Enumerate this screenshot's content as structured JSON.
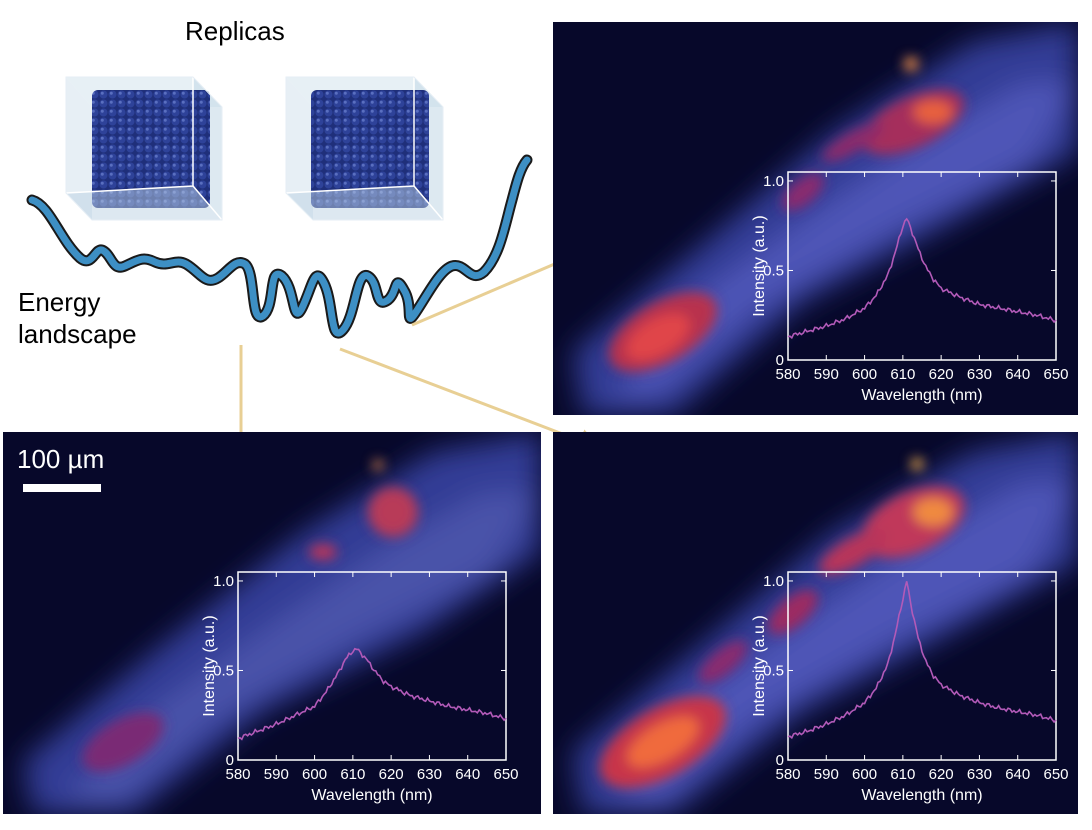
{
  "titles": {
    "replicas": "Replicas",
    "energy_line1": "Energy",
    "energy_line2": "landscape"
  },
  "scale_bar": {
    "label": "100 µm"
  },
  "colors": {
    "landscape_fill": "#3d8fc4",
    "arrow": "#e8cf94",
    "spectrum": "#b25ab8",
    "background_dark": "#07082a"
  },
  "chart_data": [
    {
      "type": "line",
      "panel": "top-right",
      "xlabel": "Wavelength (nm)",
      "ylabel": "Intensity (a.u.)",
      "xlim": [
        580,
        650
      ],
      "ylim": [
        0,
        1.05
      ],
      "xticks": [
        580,
        590,
        600,
        610,
        620,
        630,
        640,
        650
      ],
      "yticks": [
        0,
        0.5,
        1.0
      ],
      "ytick_labels": [
        "0",
        "0.5",
        "1.0"
      ],
      "x": [
        580,
        585,
        590,
        595,
        600,
        603,
        606,
        608,
        610,
        611,
        612,
        614,
        616,
        618,
        620,
        625,
        630,
        635,
        640,
        645,
        650
      ],
      "values": [
        0.13,
        0.16,
        0.19,
        0.23,
        0.29,
        0.36,
        0.47,
        0.6,
        0.75,
        0.79,
        0.74,
        0.62,
        0.52,
        0.45,
        0.4,
        0.35,
        0.31,
        0.29,
        0.27,
        0.25,
        0.22
      ]
    },
    {
      "type": "line",
      "panel": "bottom-left",
      "xlabel": "Wavelength (nm)",
      "ylabel": "Intensity (a.u.)",
      "xlim": [
        580,
        650
      ],
      "ylim": [
        0,
        1.05
      ],
      "xticks": [
        580,
        590,
        600,
        610,
        620,
        630,
        640,
        650
      ],
      "yticks": [
        0,
        0.5,
        1.0
      ],
      "ytick_labels": [
        "0",
        "0.5",
        "1.0"
      ],
      "x": [
        580,
        585,
        590,
        595,
        600,
        603,
        606,
        608,
        610,
        611,
        612,
        614,
        616,
        618,
        620,
        625,
        630,
        635,
        640,
        645,
        650
      ],
      "values": [
        0.12,
        0.16,
        0.2,
        0.25,
        0.3,
        0.38,
        0.48,
        0.56,
        0.61,
        0.62,
        0.6,
        0.55,
        0.49,
        0.44,
        0.41,
        0.36,
        0.33,
        0.3,
        0.28,
        0.26,
        0.23
      ]
    },
    {
      "type": "line",
      "panel": "bottom-right",
      "xlabel": "Wavelength (nm)",
      "ylabel": "Intensity (a.u.)",
      "xlim": [
        580,
        650
      ],
      "ylim": [
        0,
        1.05
      ],
      "xticks": [
        580,
        590,
        600,
        610,
        620,
        630,
        640,
        650
      ],
      "yticks": [
        0,
        0.5,
        1.0
      ],
      "ytick_labels": [
        "0",
        "0.5",
        "1.0"
      ],
      "x": [
        580,
        585,
        590,
        595,
        600,
        603,
        606,
        608,
        610,
        611,
        612,
        614,
        616,
        618,
        620,
        625,
        630,
        635,
        640,
        645,
        650
      ],
      "values": [
        0.13,
        0.16,
        0.2,
        0.25,
        0.32,
        0.4,
        0.53,
        0.7,
        0.9,
        1.0,
        0.88,
        0.68,
        0.55,
        0.47,
        0.42,
        0.36,
        0.32,
        0.29,
        0.27,
        0.25,
        0.22
      ]
    }
  ]
}
